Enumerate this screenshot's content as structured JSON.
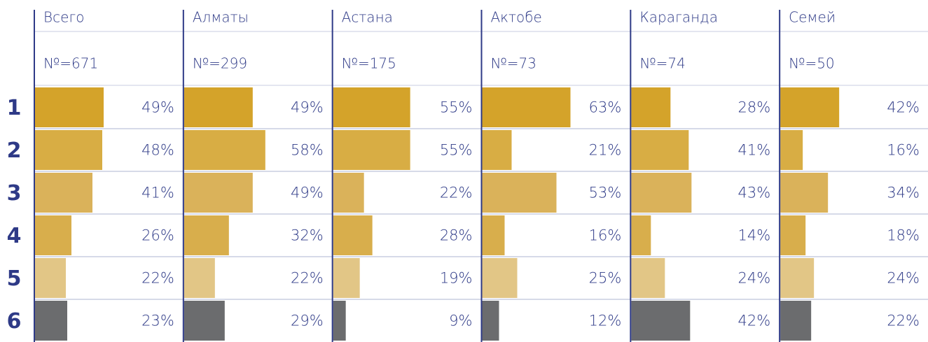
{
  "chart_data": {
    "type": "bar-table",
    "rows": [
      "1",
      "2",
      "3",
      "4",
      "5",
      "6"
    ],
    "row_colors": [
      "#d4a32a",
      "#d8ad44",
      "#dab25a",
      "#d8ae4c",
      "#e2c686",
      "#6b6c6e"
    ],
    "xlim": [
      0,
      100
    ],
    "series": [
      {
        "name": "Всего",
        "n_label": "№=671",
        "values": [
          49,
          48,
          41,
          26,
          22,
          23
        ],
        "value_labels": [
          "49%",
          "48%",
          "41%",
          "26%",
          "22%",
          "23%"
        ]
      },
      {
        "name": "Алматы",
        "n_label": "№=299",
        "values": [
          49,
          58,
          49,
          32,
          22,
          29
        ],
        "value_labels": [
          "49%",
          "58%",
          "49%",
          "32%",
          "22%",
          "29%"
        ]
      },
      {
        "name": "Астана",
        "n_label": "№=175",
        "values": [
          55,
          55,
          22,
          28,
          19,
          9
        ],
        "value_labels": [
          "55%",
          "55%",
          "22%",
          "28%",
          "19%",
          "9%"
        ]
      },
      {
        "name": "Актобе",
        "n_label": "№=73",
        "values": [
          63,
          21,
          53,
          16,
          25,
          12
        ],
        "value_labels": [
          "63%",
          "21%",
          "53%",
          "16%",
          "25%",
          "12%"
        ]
      },
      {
        "name": "Караганда",
        "n_label": "№=74",
        "values": [
          28,
          41,
          43,
          14,
          24,
          42
        ],
        "value_labels": [
          "28%",
          "41%",
          "43%",
          "14%",
          "24%",
          "42%"
        ]
      },
      {
        "name": "Семей",
        "n_label": "№=50",
        "values": [
          42,
          16,
          34,
          18,
          24,
          22
        ],
        "value_labels": [
          "42%",
          "16%",
          "34%",
          "18%",
          "24%",
          "22%"
        ]
      }
    ]
  }
}
